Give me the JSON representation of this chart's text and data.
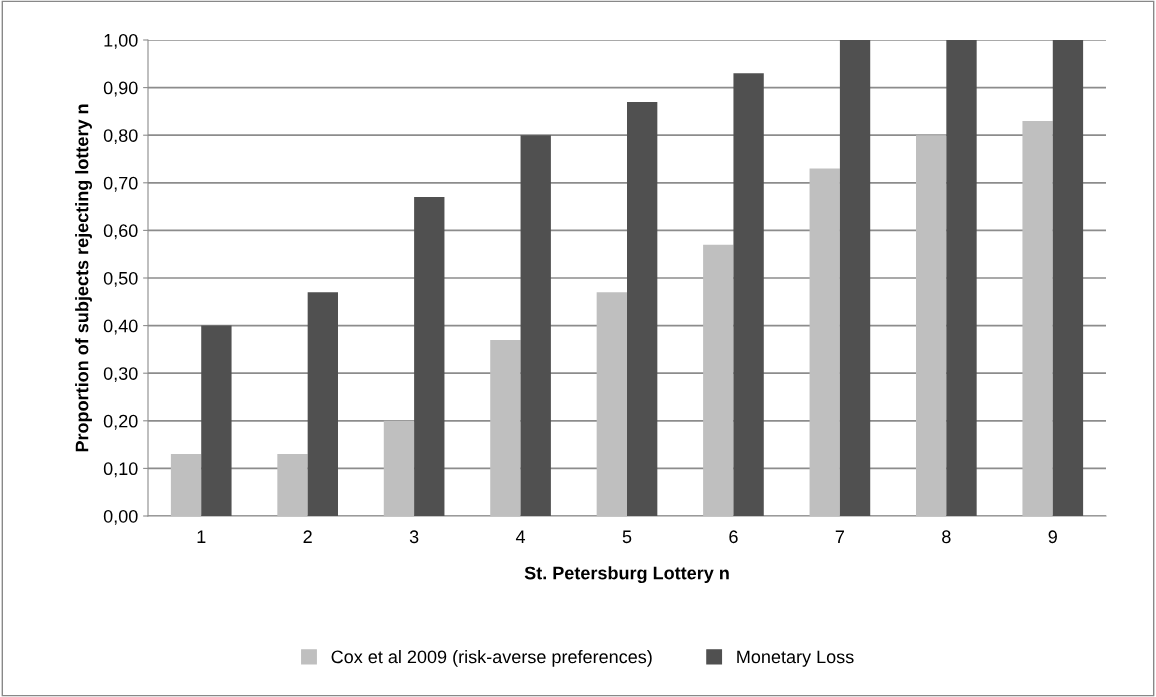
{
  "chart_data": {
    "type": "bar",
    "xlabel": "St. Petersburg Lottery n",
    "ylabel": "Proportion of subjects rejecting lottery n",
    "categories": [
      "1",
      "2",
      "3",
      "4",
      "5",
      "6",
      "7",
      "8",
      "9"
    ],
    "series": [
      {
        "name": "Cox et al 2009 (risk-averse preferences)",
        "color": "#bfbfbf",
        "values": [
          0.13,
          0.13,
          0.2,
          0.37,
          0.47,
          0.57,
          0.73,
          0.8,
          0.83
        ]
      },
      {
        "name": "Monetary Loss",
        "color": "#505050",
        "values": [
          0.4,
          0.47,
          0.67,
          0.8,
          0.87,
          0.93,
          1.0,
          1.0,
          1.0
        ]
      }
    ],
    "ylim": [
      0,
      1
    ],
    "yticks": [
      {
        "value": 0,
        "label": "0,00"
      },
      {
        "value": 0.1,
        "label": "0,10"
      },
      {
        "value": 0.2,
        "label": "0,20"
      },
      {
        "value": 0.3,
        "label": "0,30"
      },
      {
        "value": 0.4,
        "label": "0,40"
      },
      {
        "value": 0.5,
        "label": "0,50"
      },
      {
        "value": 0.6,
        "label": "0,60"
      },
      {
        "value": 0.7,
        "label": "0,70"
      },
      {
        "value": 0.8,
        "label": "0,80"
      },
      {
        "value": 0.9,
        "label": "0,90"
      },
      {
        "value": 1,
        "label": "1,00"
      }
    ],
    "grid": "y",
    "legend": "bottom"
  }
}
